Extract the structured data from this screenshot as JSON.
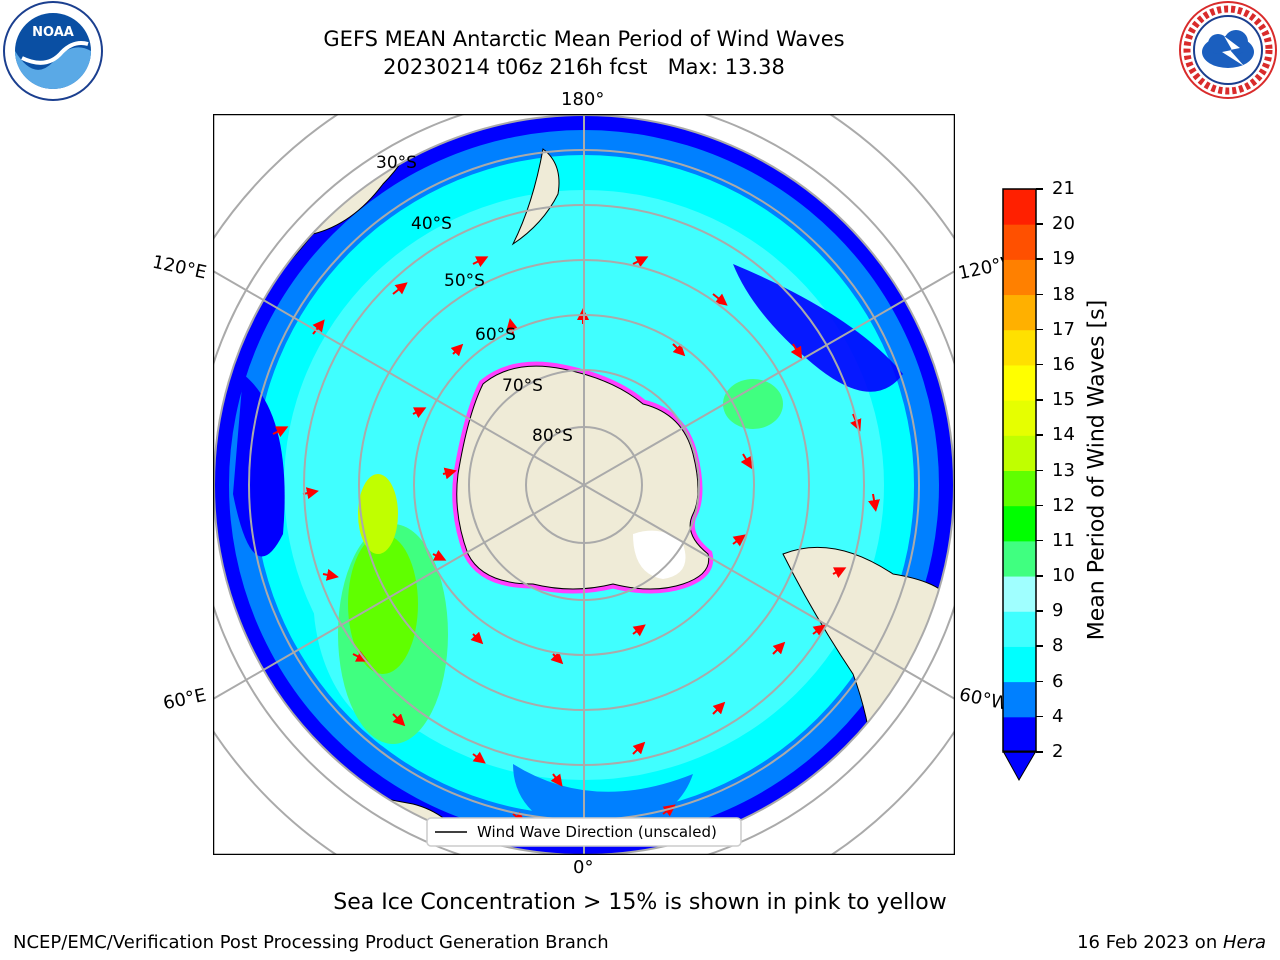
{
  "header": {
    "title_line1": "GEFS MEAN Antarctic Mean Period of Wind Waves",
    "title_line2": "20230214 t06z 216h fcst   Max: 13.38"
  },
  "logos": {
    "noaa_text": "NOAA",
    "nws_text": "NATIONAL WEATHER SERVICE"
  },
  "map": {
    "longitude_labels": [
      "180°",
      "120°E",
      "120°W",
      "60°E",
      "60°W",
      "0°"
    ],
    "latitude_labels": [
      "30°S",
      "40°S",
      "50°S",
      "60°S",
      "70°S",
      "80°S"
    ],
    "legend_label": "Wind Wave Direction (unscaled)",
    "ocean_color": "#00ffff",
    "land_color": "#efebd7",
    "arrow_color": "#ff0000"
  },
  "colorbar": {
    "label": "Mean Period of Wind Waves [s]",
    "ticks": [
      "2",
      "4",
      "6",
      "8",
      "9",
      "10",
      "11",
      "12",
      "13",
      "14",
      "15",
      "16",
      "17",
      "18",
      "19",
      "20",
      "21"
    ],
    "colors": [
      "#0000ff",
      "#0080ff",
      "#00ffff",
      "#40ffff",
      "#a0ffff",
      "#40ff80",
      "#00ff00",
      "#60ff00",
      "#c0ff00",
      "#e6ff00",
      "#ffff00",
      "#ffe000",
      "#ffb000",
      "#ff8000",
      "#ff5000",
      "#ff2000",
      "#ff0000"
    ],
    "under_color": "#0000ff"
  },
  "caption": "Sea Ice Concentration > 15% is shown in pink to yellow",
  "footer": {
    "left": "NCEP/EMC/Verification Post Processing Product Generation Branch",
    "right_date": "16 Feb 2023 on ",
    "right_host": "Hera"
  }
}
